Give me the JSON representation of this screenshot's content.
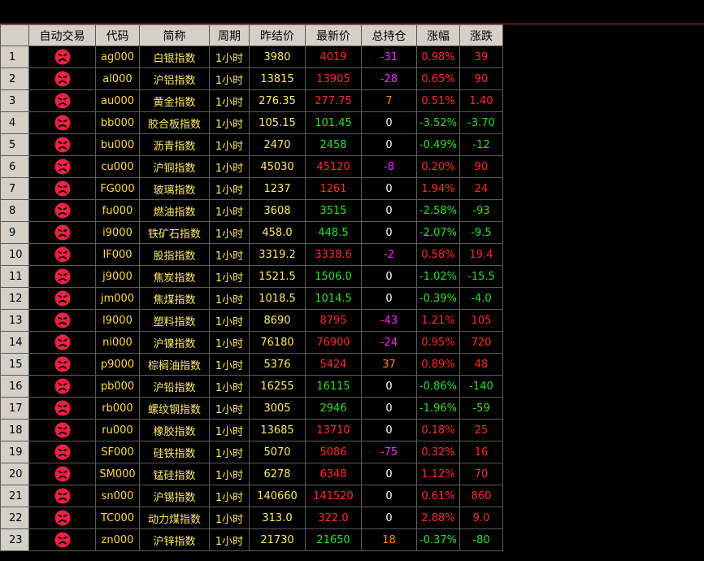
{
  "columns": [
    "自动交易",
    "代码",
    "简称",
    "周期",
    "昨结价",
    "最新价",
    "总持仓",
    "涨幅",
    "涨跌"
  ],
  "colors": {
    "up": "#ff2b2b",
    "down": "#27e027",
    "flat": "#ffffff",
    "oi_pos": "#ff8800",
    "oi_neg": "#ff22ff",
    "auto_trade_icon": "#ee2244"
  },
  "auto_trade_icon": "sad-face-icon",
  "rows": [
    {
      "num": "1",
      "code": "ag000",
      "name": "白银指数",
      "period": "1小时",
      "settle": "3980",
      "last": "4019",
      "oi": "-31",
      "pct": "0.98%",
      "chg": "39",
      "dir": "up"
    },
    {
      "num": "2",
      "code": "al000",
      "name": "沪铝指数",
      "period": "1小时",
      "settle": "13815",
      "last": "13905",
      "oi": "-28",
      "pct": "0.65%",
      "chg": "90",
      "dir": "up"
    },
    {
      "num": "3",
      "code": "au000",
      "name": "黄金指数",
      "period": "1小时",
      "settle": "276.35",
      "last": "277.75",
      "oi": "7",
      "pct": "0.51%",
      "chg": "1.40",
      "dir": "up"
    },
    {
      "num": "4",
      "code": "bb000",
      "name": "胶合板指数",
      "period": "1小时",
      "settle": "105.15",
      "last": "101.45",
      "oi": "0",
      "pct": "-3.52%",
      "chg": "-3.70",
      "dir": "down"
    },
    {
      "num": "5",
      "code": "bu000",
      "name": "沥青指数",
      "period": "1小时",
      "settle": "2470",
      "last": "2458",
      "oi": "0",
      "pct": "-0.49%",
      "chg": "-12",
      "dir": "down"
    },
    {
      "num": "6",
      "code": "cu000",
      "name": "沪铜指数",
      "period": "1小时",
      "settle": "45030",
      "last": "45120",
      "oi": "-8",
      "pct": "0.20%",
      "chg": "90",
      "dir": "up"
    },
    {
      "num": "7",
      "code": "FG000",
      "name": "玻璃指数",
      "period": "1小时",
      "settle": "1237",
      "last": "1261",
      "oi": "0",
      "pct": "1.94%",
      "chg": "24",
      "dir": "up"
    },
    {
      "num": "8",
      "code": "fu000",
      "name": "燃油指数",
      "period": "1小时",
      "settle": "3608",
      "last": "3515",
      "oi": "0",
      "pct": "-2.58%",
      "chg": "-93",
      "dir": "down"
    },
    {
      "num": "9",
      "code": "i9000",
      "name": "铁矿石指数",
      "period": "1小时",
      "settle": "458.0",
      "last": "448.5",
      "oi": "0",
      "pct": "-2.07%",
      "chg": "-9.5",
      "dir": "down"
    },
    {
      "num": "10",
      "code": "IF000",
      "name": "股指指数",
      "period": "1小时",
      "settle": "3319.2",
      "last": "3338.6",
      "oi": "-2",
      "pct": "0.58%",
      "chg": "19.4",
      "dir": "up"
    },
    {
      "num": "11",
      "code": "j9000",
      "name": "焦炭指数",
      "period": "1小时",
      "settle": "1521.5",
      "last": "1506.0",
      "oi": "0",
      "pct": "-1.02%",
      "chg": "-15.5",
      "dir": "down"
    },
    {
      "num": "12",
      "code": "jm000",
      "name": "焦煤指数",
      "period": "1小时",
      "settle": "1018.5",
      "last": "1014.5",
      "oi": "0",
      "pct": "-0.39%",
      "chg": "-4.0",
      "dir": "down"
    },
    {
      "num": "13",
      "code": "l9000",
      "name": "塑料指数",
      "period": "1小时",
      "settle": "8690",
      "last": "8795",
      "oi": "-43",
      "pct": "1.21%",
      "chg": "105",
      "dir": "up"
    },
    {
      "num": "14",
      "code": "ni000",
      "name": "沪镍指数",
      "period": "1小时",
      "settle": "76180",
      "last": "76900",
      "oi": "-24",
      "pct": "0.95%",
      "chg": "720",
      "dir": "up"
    },
    {
      "num": "15",
      "code": "p9000",
      "name": "棕榈油指数",
      "period": "1小时",
      "settle": "5376",
      "last": "5424",
      "oi": "37",
      "pct": "0.89%",
      "chg": "48",
      "dir": "up"
    },
    {
      "num": "16",
      "code": "pb000",
      "name": "沪铅指数",
      "period": "1小时",
      "settle": "16255",
      "last": "16115",
      "oi": "0",
      "pct": "-0.86%",
      "chg": "-140",
      "dir": "down"
    },
    {
      "num": "17",
      "code": "rb000",
      "name": "螺纹钢指数",
      "period": "1小时",
      "settle": "3005",
      "last": "2946",
      "oi": "0",
      "pct": "-1.96%",
      "chg": "-59",
      "dir": "down"
    },
    {
      "num": "18",
      "code": "ru000",
      "name": "橡胶指数",
      "period": "1小时",
      "settle": "13685",
      "last": "13710",
      "oi": "0",
      "pct": "0.18%",
      "chg": "25",
      "dir": "up"
    },
    {
      "num": "19",
      "code": "SF000",
      "name": "硅铁指数",
      "period": "1小时",
      "settle": "5070",
      "last": "5086",
      "oi": "-75",
      "pct": "0.32%",
      "chg": "16",
      "dir": "up"
    },
    {
      "num": "20",
      "code": "SM000",
      "name": "锰硅指数",
      "period": "1小时",
      "settle": "6278",
      "last": "6348",
      "oi": "0",
      "pct": "1.12%",
      "chg": "70",
      "dir": "up"
    },
    {
      "num": "21",
      "code": "sn000",
      "name": "沪锡指数",
      "period": "1小时",
      "settle": "140660",
      "last": "141520",
      "oi": "0",
      "pct": "0.61%",
      "chg": "860",
      "dir": "up"
    },
    {
      "num": "22",
      "code": "TC000",
      "name": "动力煤指数",
      "period": "1小时",
      "settle": "313.0",
      "last": "322.0",
      "oi": "0",
      "pct": "2.88%",
      "chg": "9.0",
      "dir": "up"
    },
    {
      "num": "23",
      "code": "zn000",
      "name": "沪锌指数",
      "period": "1小时",
      "settle": "21730",
      "last": "21650",
      "oi": "18",
      "pct": "-0.37%",
      "chg": "-80",
      "dir": "down"
    }
  ]
}
